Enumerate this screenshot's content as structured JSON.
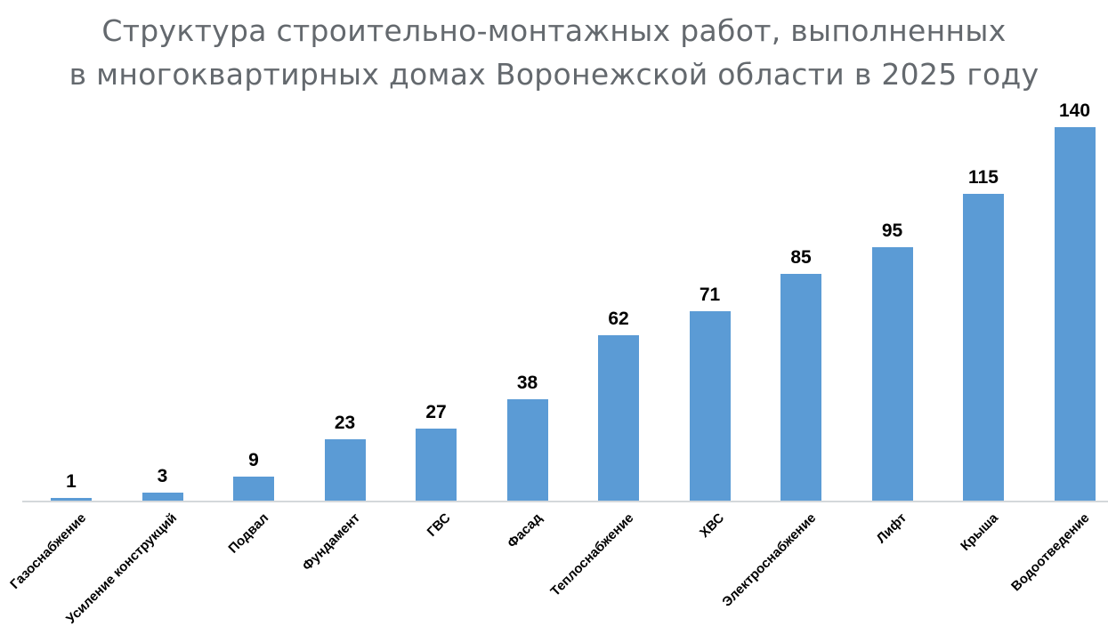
{
  "title": {
    "line1": "Структура строительно-монтажных работ, выполненных",
    "line2": "в многоквартирных домах Воронежской области в 2025 году"
  },
  "chart_data": {
    "type": "bar",
    "title": "Структура строительно-монтажных работ, выполненных в многоквартирных домах Воронежской области в 2025 году",
    "categories": [
      "Газоснабжение",
      "Усиление конструкций",
      "Подвал",
      "Фундамент",
      "ГВС",
      "Фасад",
      "Теплоснабжение",
      "ХВС",
      "Электроснабжение",
      "Лифт",
      "Крыша",
      "Водоотведение"
    ],
    "values": [
      1,
      3,
      9,
      23,
      27,
      38,
      62,
      71,
      85,
      95,
      115,
      140
    ],
    "xlabel": "",
    "ylabel": "",
    "ylim": [
      0,
      140
    ],
    "grid": false,
    "legend": false,
    "data_labels": true,
    "x_tick_rotation": 45,
    "colors": {
      "bar": "#5B9BD5",
      "value_label": "#000000",
      "category_label": "#000000",
      "axis_line": "#d4d8db",
      "title": "#64696e",
      "background": "#ffffff"
    }
  }
}
